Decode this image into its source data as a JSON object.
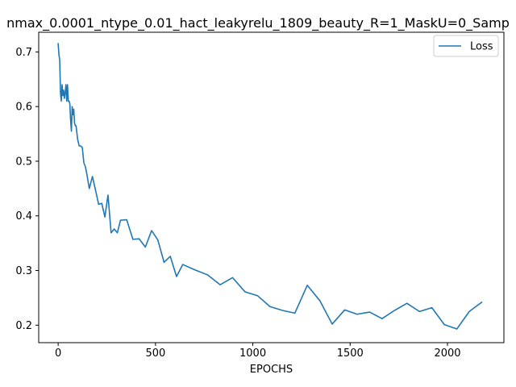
{
  "chart_data": {
    "type": "line",
    "title": "nmax_0.0001_ntype_0.01_hact_leakyrelu_1809_beauty_R=1_MaskU=0_Samp",
    "xlabel": "EPOCHS",
    "ylabel": "",
    "xlim": [
      -100,
      2290
    ],
    "ylim": [
      0.168,
      0.736
    ],
    "xticks": [
      0,
      500,
      1000,
      1500,
      2000
    ],
    "yticks": [
      0.2,
      0.3,
      0.4,
      0.5,
      0.6,
      0.7
    ],
    "xtick_labels": [
      "0",
      "500",
      "1000",
      "1500",
      "2000"
    ],
    "ytick_labels": [
      "0.2",
      "0.3",
      "0.4",
      "0.5",
      "0.6",
      "0.7"
    ],
    "grid": false,
    "legend": "top-right",
    "colors": {
      "Loss": "#1f77b4"
    },
    "series": [
      {
        "name": "Loss",
        "x": [
          0,
          4,
          8,
          12,
          16,
          20,
          24,
          28,
          32,
          36,
          40,
          44,
          48,
          52,
          56,
          60,
          64,
          68,
          72,
          76,
          80,
          84,
          88,
          92,
          100,
          108,
          116,
          124,
          132,
          140,
          148,
          160,
          176,
          192,
          208,
          224,
          240,
          256,
          272,
          288,
          304,
          320,
          352,
          384,
          416,
          448,
          480,
          512,
          544,
          576,
          608,
          640,
          704,
          768,
          832,
          896,
          960,
          1024,
          1088,
          1152,
          1216,
          1280,
          1344,
          1408,
          1472,
          1536,
          1600,
          1664,
          1728,
          1792,
          1856,
          1920,
          1984,
          2048,
          2112,
          2176
        ],
        "values": [
          0.715,
          0.695,
          0.685,
          0.625,
          0.61,
          0.64,
          0.62,
          0.63,
          0.615,
          0.625,
          0.64,
          0.61,
          0.64,
          0.61,
          0.61,
          0.605,
          0.575,
          0.555,
          0.6,
          0.585,
          0.595,
          0.57,
          0.565,
          0.565,
          0.54,
          0.528,
          0.528,
          0.525,
          0.497,
          0.49,
          0.475,
          0.45,
          0.472,
          0.447,
          0.421,
          0.423,
          0.398,
          0.438,
          0.369,
          0.376,
          0.369,
          0.392,
          0.393,
          0.357,
          0.358,
          0.343,
          0.373,
          0.356,
          0.315,
          0.326,
          0.289,
          0.311,
          0.301,
          0.292,
          0.274,
          0.287,
          0.261,
          0.254,
          0.234,
          0.227,
          0.222,
          0.273,
          0.245,
          0.202,
          0.228,
          0.22,
          0.224,
          0.212,
          0.227,
          0.24,
          0.225,
          0.232,
          0.201,
          0.193,
          0.225,
          0.242
        ]
      }
    ]
  }
}
